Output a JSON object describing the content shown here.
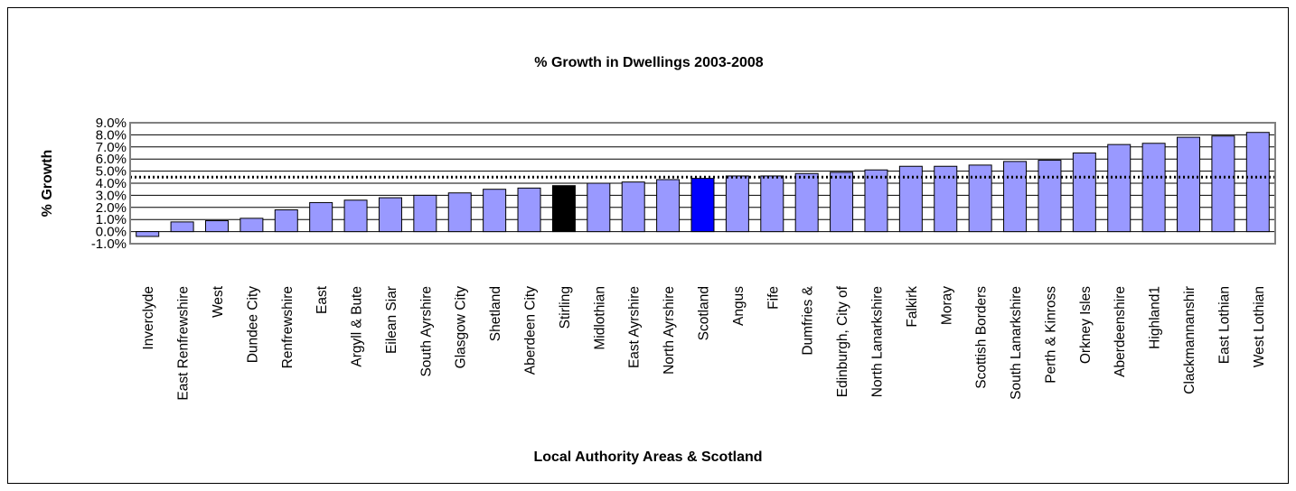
{
  "chart_data": {
    "type": "bar",
    "title": "% Growth in Dwellings 2003-2008",
    "xlabel": "Local Authority Areas & Scotland",
    "ylabel": "% Growth",
    "ylim": [
      -1.0,
      9.0
    ],
    "ytick_step": 1.0,
    "ytick_labels": [
      "-1.0%",
      "0.0%",
      "1.0%",
      "2.0%",
      "3.0%",
      "4.0%",
      "5.0%",
      "6.0%",
      "7.0%",
      "8.0%",
      "9.0%"
    ],
    "grid": true,
    "reference_line": {
      "value": 4.5,
      "style": "dotted"
    },
    "categories": [
      "Inverclyde",
      "East Renfrewshire",
      "West",
      "Dundee City",
      "Renfrewshire",
      "East",
      "Argyll & Bute",
      "Eilean Siar",
      "South Ayrshire",
      "Glasgow City",
      "Shetland",
      "Aberdeen City",
      "Stirling",
      "Midlothian",
      "East Ayrshire",
      "North Ayrshire",
      "Scotland",
      "Angus",
      "Fife",
      "Dumfries &",
      "Edinburgh, City of",
      "North Lanarkshire",
      "Falkirk",
      "Moray",
      "Scottish Borders",
      "South Lanarkshire",
      "Perth & Kinross",
      "Orkney Isles",
      "Aberdeenshire",
      "Highland1",
      "Clackmannanshir",
      "East Lothian",
      "West Lothian"
    ],
    "values": [
      -0.4,
      0.8,
      0.9,
      1.1,
      1.8,
      2.4,
      2.6,
      2.8,
      3.0,
      3.2,
      3.5,
      3.6,
      3.8,
      4.0,
      4.1,
      4.3,
      4.4,
      4.6,
      4.6,
      4.8,
      4.9,
      5.1,
      5.4,
      5.4,
      5.5,
      5.8,
      5.9,
      6.5,
      7.2,
      7.3,
      7.8,
      7.9,
      8.2
    ],
    "colors": {
      "default": "#9999ff",
      "highlights": {
        "Stirling": "#000000",
        "Scotland": "#0000ff"
      },
      "grid": "#000000",
      "plot_border": "#808080"
    }
  }
}
